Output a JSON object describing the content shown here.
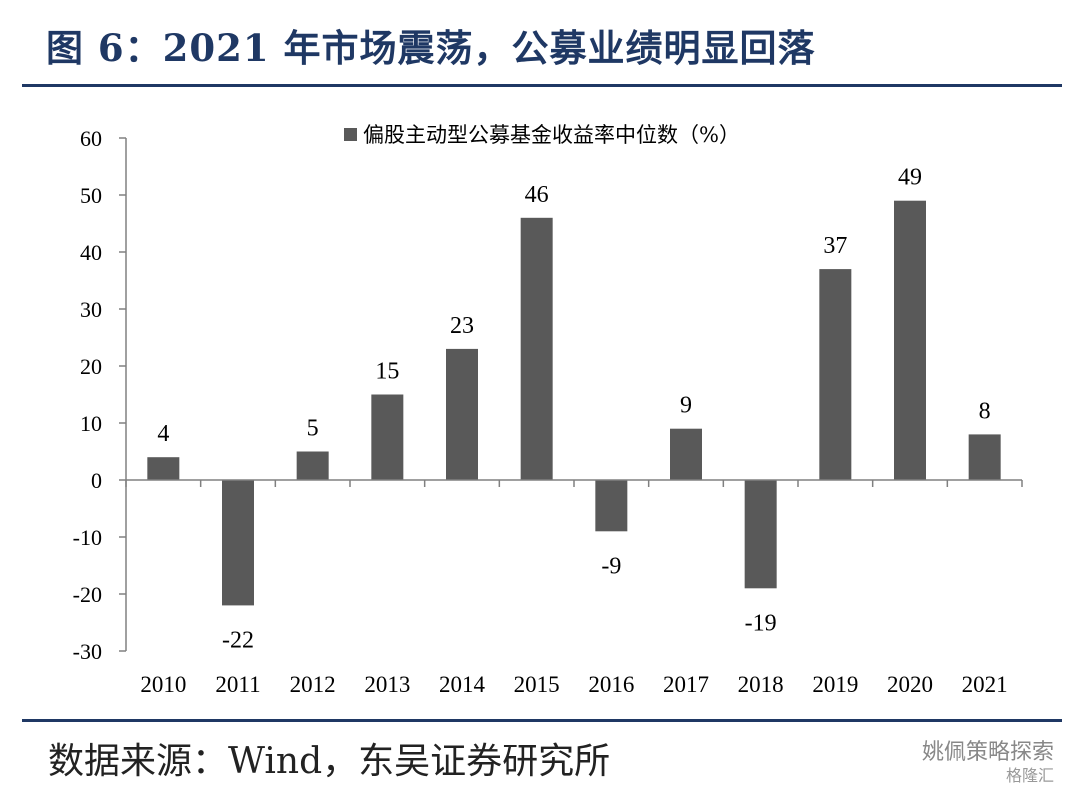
{
  "header": {
    "title": "图 6：2021 年市场震荡，公募业绩明显回落"
  },
  "footer": {
    "source": "数据来源：Wind，东吴证券研究所"
  },
  "watermark": {
    "main": "姚佩策略探索",
    "sub": "格隆汇"
  },
  "chart_data": {
    "type": "bar",
    "title": "",
    "xlabel": "",
    "ylabel": "",
    "categories": [
      "2010",
      "2011",
      "2012",
      "2013",
      "2014",
      "2015",
      "2016",
      "2017",
      "2018",
      "2019",
      "2020",
      "2021"
    ],
    "series": [
      {
        "name": "偏股主动型公募基金收益率中位数（%）",
        "values": [
          4,
          -22,
          5,
          15,
          23,
          46,
          -9,
          9,
          -19,
          37,
          49,
          8
        ],
        "labels": [
          "4",
          "-22",
          "5",
          "15",
          "23",
          "46",
          "-9",
          "9",
          "-19",
          "37",
          "49",
          "8"
        ]
      }
    ],
    "ylim": [
      -30,
      60
    ],
    "yticks": [
      60,
      50,
      40,
      30,
      20,
      10,
      0,
      -10,
      -20,
      -30
    ],
    "grid": false,
    "legend": "top-center",
    "colors": {
      "bar": "#595959",
      "axis": "#808080",
      "text": "#000000"
    }
  }
}
